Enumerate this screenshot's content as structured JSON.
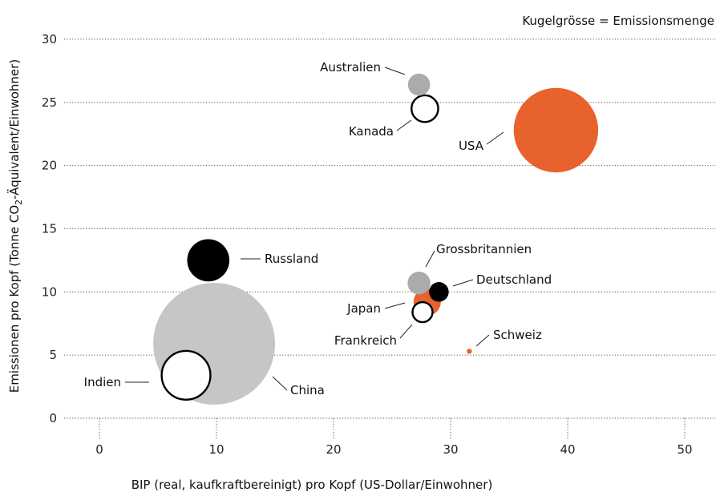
{
  "chart_data": {
    "type": "scatter",
    "title": "",
    "size_legend": "Kugelgrösse = Emissionsmenge",
    "xlabel": "BIP (real, kaufkraftbereinigt) pro Kopf (US-Dollar/Einwohner)",
    "ylabel_main": "Emissionen pro Kopf (Tonne CO",
    "ylabel_sub": "2",
    "ylabel_rest": "-Äquivalent/Einwohner)",
    "xlim": [
      -3,
      53
    ],
    "ylim": [
      0,
      30
    ],
    "x_ticks": [
      "0",
      "10",
      "20",
      "30",
      "40",
      "50"
    ],
    "y_ticks": [
      "0",
      "5",
      "10",
      "15",
      "20",
      "25",
      "30"
    ],
    "grid": "horizontal dotted at y ticks, vertical dotted stubs below x axis",
    "colors": {
      "orange": "#E8622D",
      "gray": "#BDBDBD",
      "dark_gray": "#A9A9A9",
      "black": "#000000",
      "white": "#FFFFFF"
    },
    "points": [
      {
        "label": "China",
        "x": 9.8,
        "y": 5.9,
        "size": 100,
        "fill": "#C6C6C6",
        "stroke": "none"
      },
      {
        "label": "USA",
        "x": 39.0,
        "y": 22.8,
        "size": 48,
        "fill": "#E8622D",
        "stroke": "none"
      },
      {
        "label": "Indien",
        "x": 7.4,
        "y": 3.4,
        "size": 16,
        "fill": "#FFFFFF",
        "stroke": "#000000"
      },
      {
        "label": "Russland",
        "x": 9.3,
        "y": 12.5,
        "size": 12,
        "fill": "#000000",
        "stroke": "none"
      },
      {
        "label": "Japan",
        "x": 28.0,
        "y": 9.2,
        "size": 5,
        "fill": "#E8622D",
        "stroke": "none"
      },
      {
        "label": "Deutschland",
        "x": 29.0,
        "y": 10.0,
        "size": 2.6,
        "fill": "#000000",
        "stroke": "none"
      },
      {
        "label": "Grossbritannien",
        "x": 27.3,
        "y": 10.7,
        "size": 3.5,
        "fill": "#ABABAB",
        "stroke": "none"
      },
      {
        "label": "Frankreich",
        "x": 27.6,
        "y": 8.4,
        "size": 2.7,
        "fill": "#FFFFFF",
        "stroke": "#000000"
      },
      {
        "label": "Kanada",
        "x": 27.8,
        "y": 24.5,
        "size": 4.8,
        "fill": "#FFFFFF",
        "stroke": "#000000"
      },
      {
        "label": "Australien",
        "x": 27.3,
        "y": 26.4,
        "size": 3.3,
        "fill": "#ABABAB",
        "stroke": "none"
      },
      {
        "label": "Schweiz",
        "x": 31.6,
        "y": 5.3,
        "size": 0.15,
        "fill": "#E8622D",
        "stroke": "none"
      }
    ]
  }
}
